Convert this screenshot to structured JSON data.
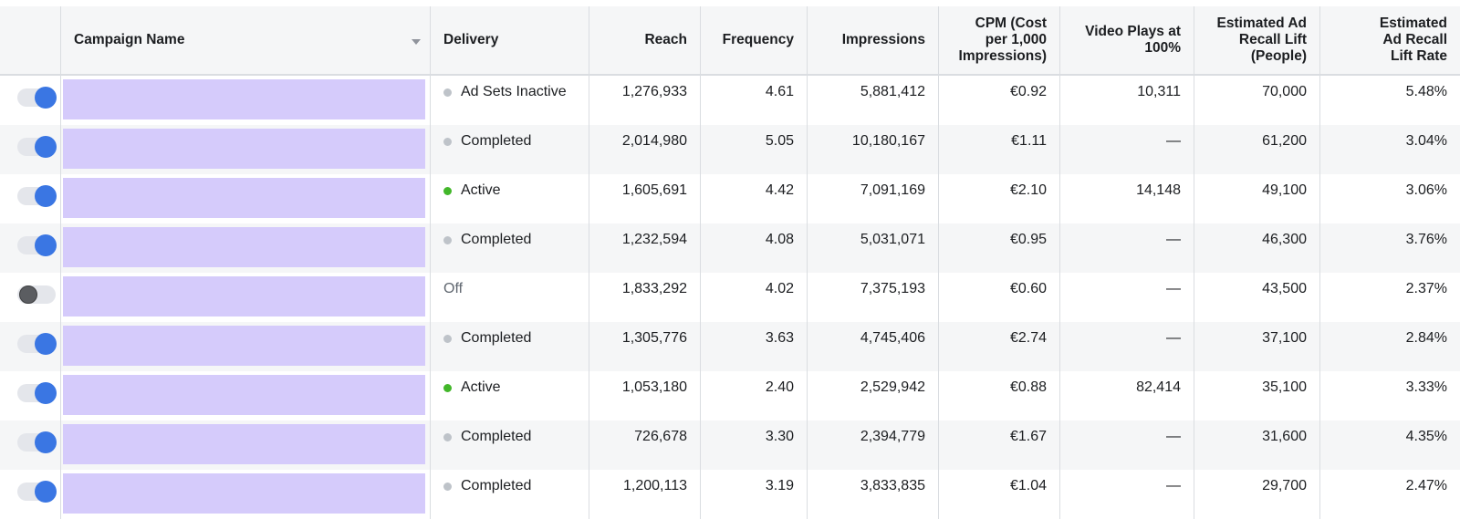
{
  "colors": {
    "toggle_on": "#3a76e3",
    "toggle_off": "#5b5d61",
    "dot_active": "#42b72a",
    "dot_inactive": "#bec3c9",
    "name_placeholder": "#d5cbfb"
  },
  "columns": {
    "campaign_name": "Campaign Name",
    "delivery": "Delivery",
    "reach": "Reach",
    "frequency": "Frequency",
    "impressions": "Impressions",
    "cpm_line1": "CPM (Cost",
    "cpm_line2": "per 1,000",
    "cpm_line3": "Impressions)",
    "video_line1": "Video Plays at",
    "video_line2": "100%",
    "lift_line1": "Estimated Ad",
    "lift_line2": "Recall Lift",
    "lift_line3": "(People)",
    "rate_line1": "Estimated",
    "rate_line2": "Ad Recall",
    "rate_line3": "Lift Rate"
  },
  "rows": [
    {
      "toggle": "on",
      "status_dot": "grey",
      "delivery": "Ad Sets Inactive",
      "reach": "1,276,933",
      "frequency": "4.61",
      "impressions": "5,881,412",
      "cpm": "€0.92",
      "video": "10,311",
      "lift": "70,000",
      "rate": "5.48%"
    },
    {
      "toggle": "on",
      "status_dot": "grey",
      "delivery": "Completed",
      "reach": "2,014,980",
      "frequency": "5.05",
      "impressions": "10,180,167",
      "cpm": "€1.11",
      "video": "—",
      "lift": "61,200",
      "rate": "3.04%"
    },
    {
      "toggle": "on",
      "status_dot": "green",
      "delivery": "Active",
      "reach": "1,605,691",
      "frequency": "4.42",
      "impressions": "7,091,169",
      "cpm": "€2.10",
      "video": "14,148",
      "lift": "49,100",
      "rate": "3.06%"
    },
    {
      "toggle": "on",
      "status_dot": "grey",
      "delivery": "Completed",
      "reach": "1,232,594",
      "frequency": "4.08",
      "impressions": "5,031,071",
      "cpm": "€0.95",
      "video": "—",
      "lift": "46,300",
      "rate": "3.76%"
    },
    {
      "toggle": "off",
      "status_dot": "none",
      "delivery": "Off",
      "reach": "1,833,292",
      "frequency": "4.02",
      "impressions": "7,375,193",
      "cpm": "€0.60",
      "video": "—",
      "lift": "43,500",
      "rate": "2.37%"
    },
    {
      "toggle": "on",
      "status_dot": "grey",
      "delivery": "Completed",
      "reach": "1,305,776",
      "frequency": "3.63",
      "impressions": "4,745,406",
      "cpm": "€2.74",
      "video": "—",
      "lift": "37,100",
      "rate": "2.84%"
    },
    {
      "toggle": "on",
      "status_dot": "green",
      "delivery": "Active",
      "reach": "1,053,180",
      "frequency": "2.40",
      "impressions": "2,529,942",
      "cpm": "€0.88",
      "video": "82,414",
      "lift": "35,100",
      "rate": "3.33%"
    },
    {
      "toggle": "on",
      "status_dot": "grey",
      "delivery": "Completed",
      "reach": "726,678",
      "frequency": "3.30",
      "impressions": "2,394,779",
      "cpm": "€1.67",
      "video": "—",
      "lift": "31,600",
      "rate": "4.35%"
    },
    {
      "toggle": "on",
      "status_dot": "grey",
      "delivery": "Completed",
      "reach": "1,200,113",
      "frequency": "3.19",
      "impressions": "3,833,835",
      "cpm": "€1.04",
      "video": "—",
      "lift": "29,700",
      "rate": "2.47%"
    }
  ]
}
